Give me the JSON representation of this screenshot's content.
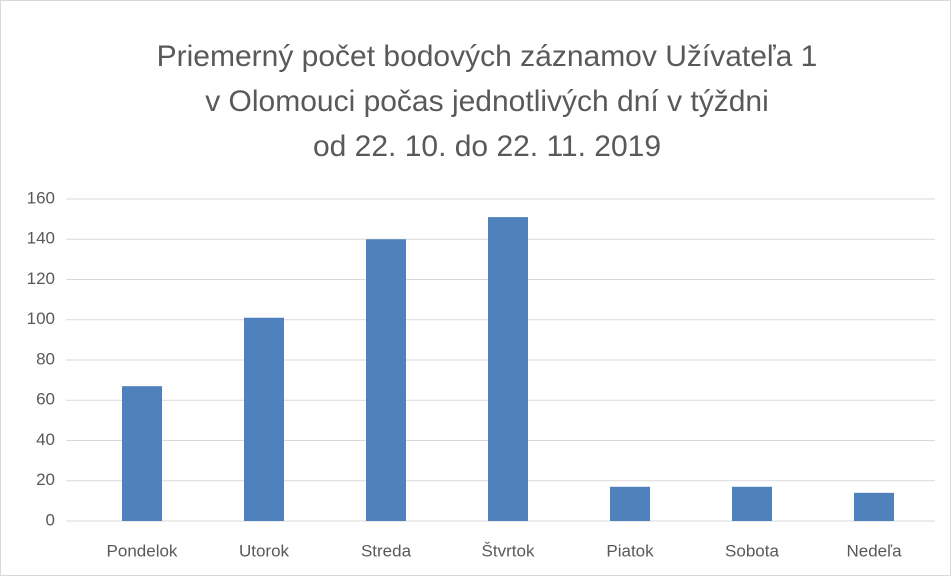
{
  "chart_data": {
    "type": "bar",
    "title": [
      "Priemerný počet bodových záznamov  Užívateľa 1",
      "v Olomouci  počas jednotlivých dní v týždni",
      "od 22. 10. do 22. 11. 2019"
    ],
    "categories": [
      "Pondelok",
      "Utorok",
      "Streda",
      "Štvrtok",
      "Piatok",
      "Sobota",
      "Nedeľa"
    ],
    "values": [
      67,
      101,
      140,
      151,
      17,
      17,
      14
    ],
    "color": "#4f81bd",
    "ylim": [
      0,
      160
    ],
    "yticks": [
      0,
      20,
      40,
      60,
      80,
      100,
      120,
      140,
      160
    ],
    "grid": true
  }
}
